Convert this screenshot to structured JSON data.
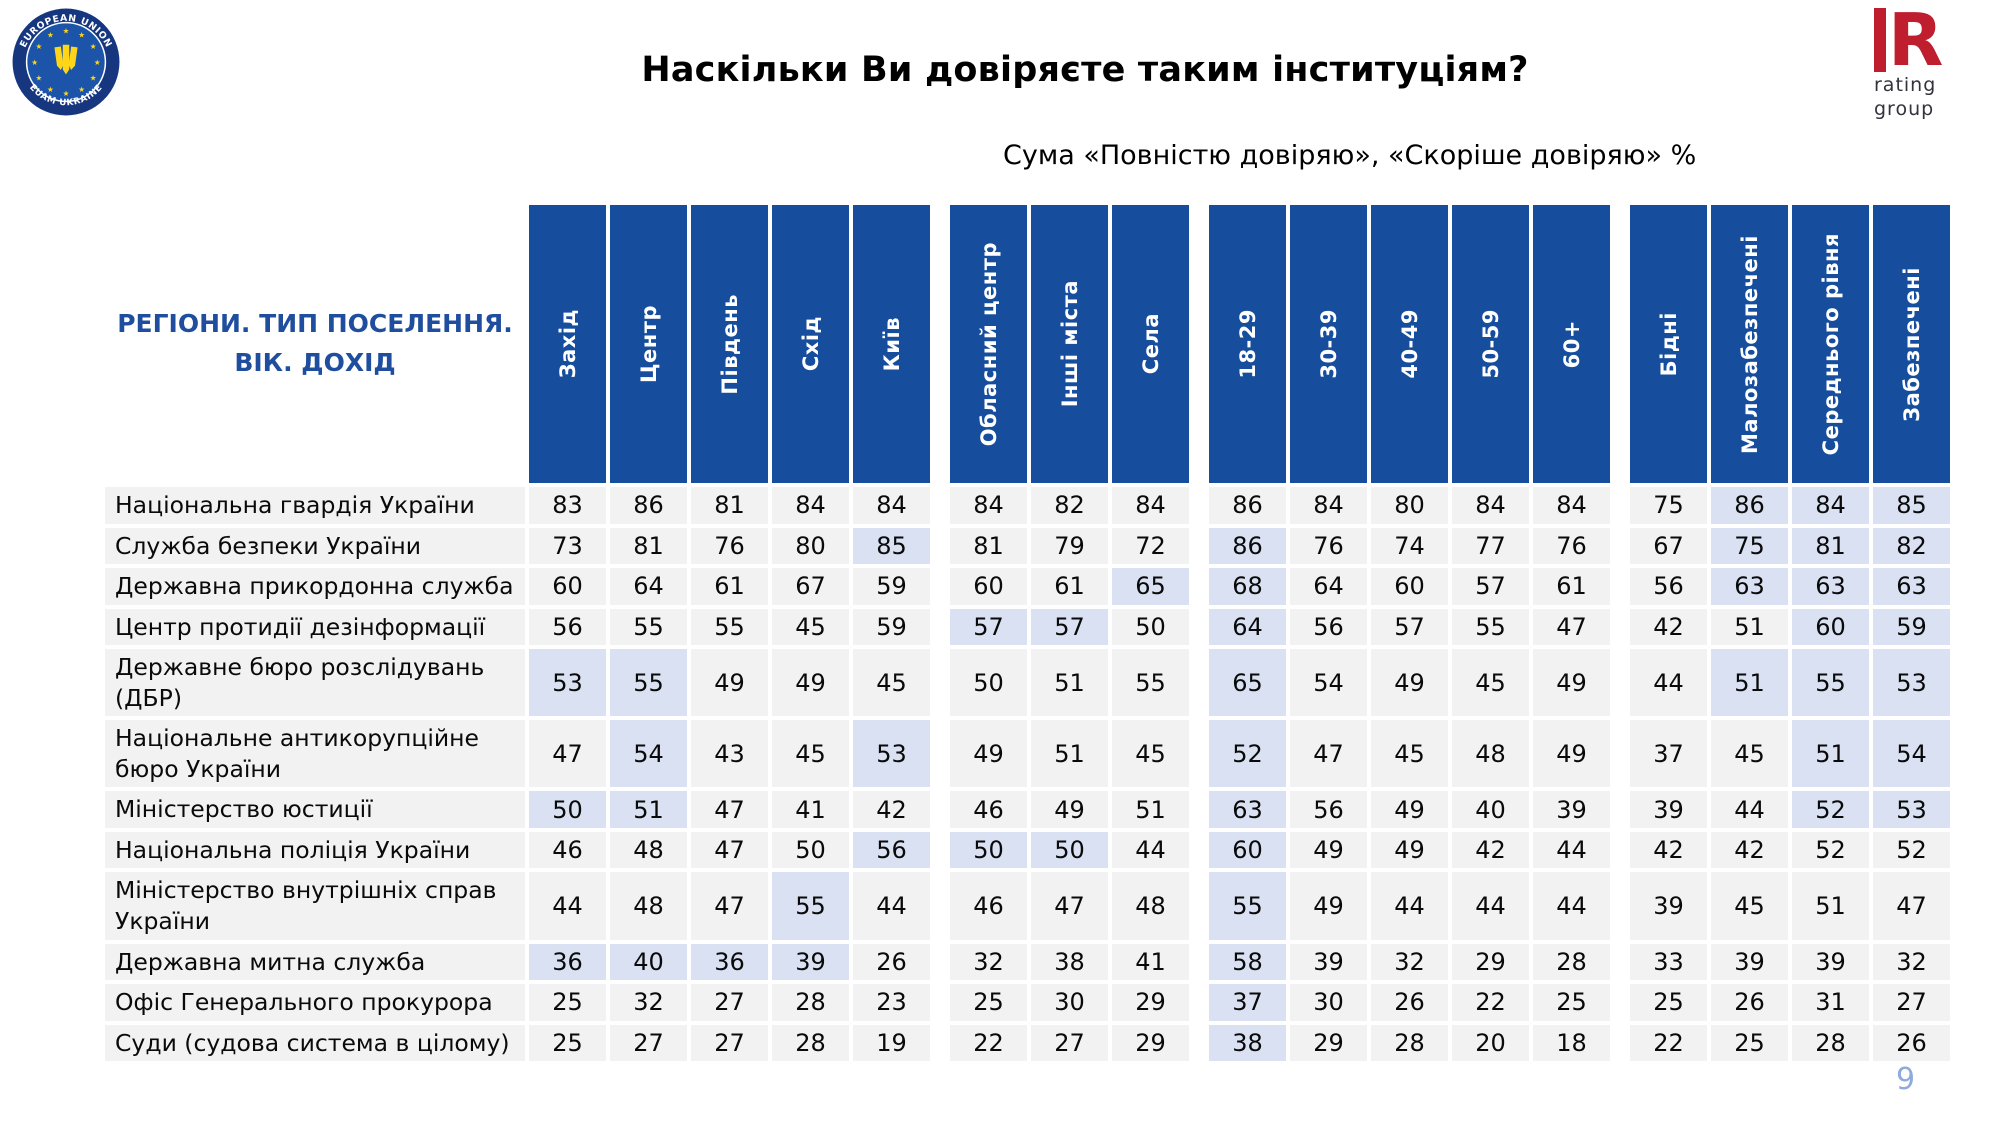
{
  "page": {
    "title": "Наскільки Ви довіряєте таким інституціям?",
    "subtitle": "Сума «Повністю довіряю», «Скоріше довіряю» %",
    "page_number": "9"
  },
  "logos": {
    "euam": {
      "arc_top": "EUROPEAN UNION",
      "arc_bottom": "EUAM UKRAINE"
    },
    "rating": {
      "letter": "R",
      "line1": "rating",
      "line2": "group"
    }
  },
  "colors": {
    "header_blue": "#164E9D",
    "cell_bg": "#F2F2F2",
    "highlight_bg": "#D9E1F2",
    "accent_text_blue": "#1F4E9E",
    "logo_red": "#BE1E2D",
    "page_number_blue": "#8FAADC",
    "euam_ring_navy": "#16377F",
    "euam_inner_blue": "#1B54A8",
    "euam_yellow": "#FFD617"
  },
  "chart_data": {
    "type": "table",
    "title": "Наскільки Ви довіряєте таким інституціям?",
    "subtitle": "Сума «Повністю довіряю», «Скоріше довіряю» %",
    "row_header_line1": "РЕГІОНИ. ТИП ПОСЕЛЕННЯ.",
    "row_header_line2": "ВІК. ДОХІД",
    "column_groups": [
      {
        "name": "regions",
        "columns": [
          "Захід",
          "Центр",
          "Південь",
          "Схід",
          "Київ"
        ]
      },
      {
        "name": "settlement-type",
        "columns": [
          "Обласний центр",
          "Інші міста",
          "Села"
        ]
      },
      {
        "name": "age",
        "columns": [
          "18-29",
          "30-39",
          "40-49",
          "50-59",
          "60+"
        ]
      },
      {
        "name": "income",
        "columns": [
          "Бідні",
          "Малозабезпечені",
          "Середнього рівня",
          "Забезпечені"
        ]
      }
    ],
    "rows": [
      {
        "label": "Національна гвардія України",
        "values": [
          83,
          86,
          81,
          84,
          84,
          84,
          82,
          84,
          86,
          84,
          80,
          84,
          84,
          75,
          86,
          84,
          85
        ],
        "highlighted": [
          14,
          15,
          16
        ]
      },
      {
        "label": "Служба безпеки України",
        "values": [
          73,
          81,
          76,
          80,
          85,
          81,
          79,
          72,
          86,
          76,
          74,
          77,
          76,
          67,
          75,
          81,
          82
        ],
        "highlighted": [
          4,
          8,
          14,
          15,
          16
        ]
      },
      {
        "label": "Державна прикордонна служба",
        "values": [
          60,
          64,
          61,
          67,
          59,
          60,
          61,
          65,
          68,
          64,
          60,
          57,
          61,
          56,
          63,
          63,
          63
        ],
        "highlighted": [
          7,
          8,
          14,
          15,
          16
        ]
      },
      {
        "label": "Центр протидії дезінформації",
        "values": [
          56,
          55,
          55,
          45,
          59,
          57,
          57,
          50,
          64,
          56,
          57,
          55,
          47,
          42,
          51,
          60,
          59
        ],
        "highlighted": [
          5,
          6,
          8,
          15,
          16
        ]
      },
      {
        "label": "Державне бюро розслідувань (ДБР)",
        "values": [
          53,
          55,
          49,
          49,
          45,
          50,
          51,
          55,
          65,
          54,
          49,
          45,
          49,
          44,
          51,
          55,
          53
        ],
        "highlighted": [
          0,
          1,
          8,
          14,
          15,
          16
        ]
      },
      {
        "label": "Національне антикорупційне бюро України",
        "values": [
          47,
          54,
          43,
          45,
          53,
          49,
          51,
          45,
          52,
          47,
          45,
          48,
          49,
          37,
          45,
          51,
          54
        ],
        "highlighted": [
          1,
          4,
          8,
          15,
          16
        ]
      },
      {
        "label": "Міністерство юстиції",
        "values": [
          50,
          51,
          47,
          41,
          42,
          46,
          49,
          51,
          63,
          56,
          49,
          40,
          39,
          39,
          44,
          52,
          53
        ],
        "highlighted": [
          0,
          1,
          8,
          15,
          16
        ]
      },
      {
        "label": "Національна поліція України",
        "values": [
          46,
          48,
          47,
          50,
          56,
          50,
          50,
          44,
          60,
          49,
          49,
          42,
          44,
          42,
          42,
          52,
          52
        ],
        "highlighted": [
          4,
          5,
          6,
          8
        ]
      },
      {
        "label": "Міністерство внутрішніх справ України",
        "values": [
          44,
          48,
          47,
          55,
          44,
          46,
          47,
          48,
          55,
          49,
          44,
          44,
          44,
          39,
          45,
          51,
          47
        ],
        "highlighted": [
          3,
          8
        ]
      },
      {
        "label": "Державна митна служба",
        "values": [
          36,
          40,
          36,
          39,
          26,
          32,
          38,
          41,
          58,
          39,
          32,
          29,
          28,
          33,
          39,
          39,
          32
        ],
        "highlighted": [
          0,
          1,
          2,
          3,
          8
        ]
      },
      {
        "label": "Офіс Генерального прокурора",
        "values": [
          25,
          32,
          27,
          28,
          23,
          25,
          30,
          29,
          37,
          30,
          26,
          22,
          25,
          25,
          26,
          31,
          27
        ],
        "highlighted": [
          8
        ]
      },
      {
        "label": "Суди (судова система в цілому)",
        "values": [
          25,
          27,
          27,
          28,
          19,
          22,
          27,
          29,
          38,
          29,
          28,
          20,
          18,
          22,
          25,
          28,
          26
        ],
        "highlighted": [
          8
        ]
      }
    ]
  }
}
